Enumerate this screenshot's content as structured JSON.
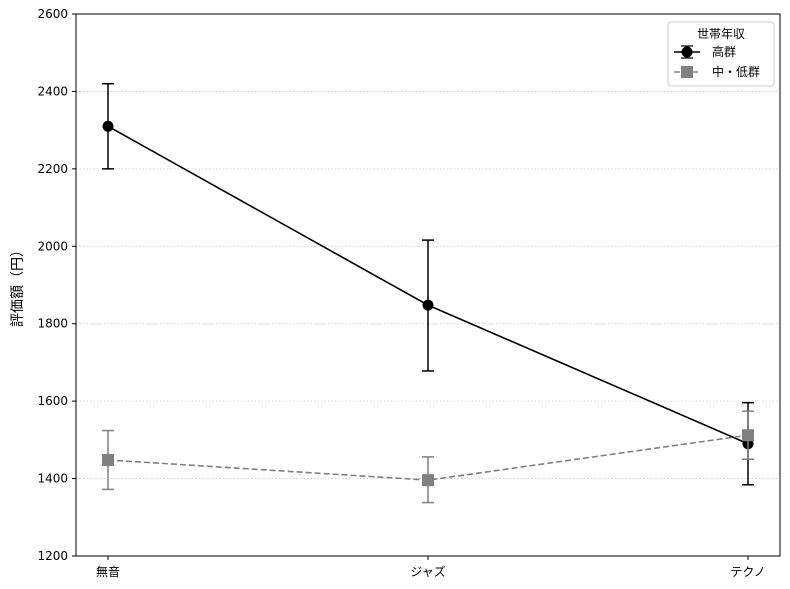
{
  "chart_data": {
    "type": "line",
    "title": "",
    "xlabel": "",
    "ylabel": "評価額（円）",
    "ylim": [
      1200,
      2600
    ],
    "yticks": [
      "1200",
      "1400",
      "1600",
      "1800",
      "2000",
      "2200",
      "2400",
      "2600"
    ],
    "categories": [
      "無音",
      "ジャズ",
      "テクノ"
    ],
    "grid": "horizontal dotted",
    "legend": {
      "title": "世帯年収",
      "placement": "top-right"
    },
    "series": [
      {
        "name": "高群",
        "color": "#000000",
        "marker": "circle",
        "linestyle": "solid",
        "values": [
          2310,
          1848,
          1490
        ],
        "err_low": [
          2200,
          1678,
          1384
        ],
        "err_high": [
          2420,
          2016,
          1596
        ]
      },
      {
        "name": "中・低群",
        "color": "#808080",
        "marker": "square",
        "linestyle": "dashed",
        "values": [
          1448,
          1396,
          1512
        ],
        "err_low": [
          1372,
          1338,
          1450
        ],
        "err_high": [
          1524,
          1456,
          1574
        ]
      }
    ]
  }
}
